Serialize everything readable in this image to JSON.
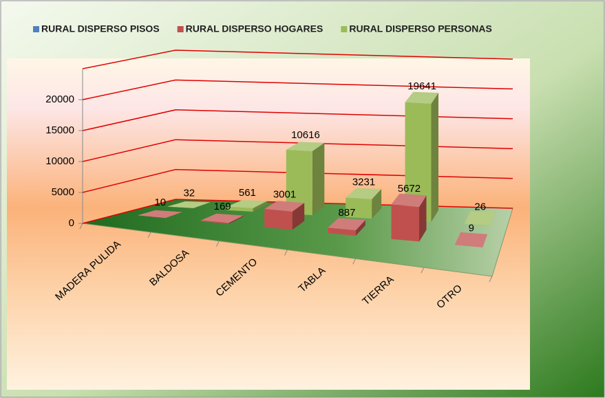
{
  "chart_data": {
    "type": "bar3d",
    "categories": [
      "MADERA PULIDA",
      "BALDOSA",
      "CEMENTO",
      "TABLA",
      "TIERRA",
      "OTRO"
    ],
    "series": [
      {
        "name": "RURAL DISPERSO PISOS",
        "color": "#4f81bd",
        "values": [
          null,
          null,
          null,
          null,
          null,
          null
        ]
      },
      {
        "name": "RURAL DISPERSO HOGARES",
        "color": "#c0504d",
        "values": [
          10,
          169,
          3001,
          887,
          5672,
          9
        ]
      },
      {
        "name": "RURAL DISPERSO PERSONAS",
        "color": "#9bbb59",
        "values": [
          32,
          561,
          10616,
          3231,
          19641,
          26
        ]
      }
    ],
    "ylim": [
      0,
      25000
    ],
    "yticks": [
      0,
      5000,
      10000,
      15000,
      20000
    ],
    "grid": true,
    "grid_color": "#e00000",
    "legend": "top"
  }
}
